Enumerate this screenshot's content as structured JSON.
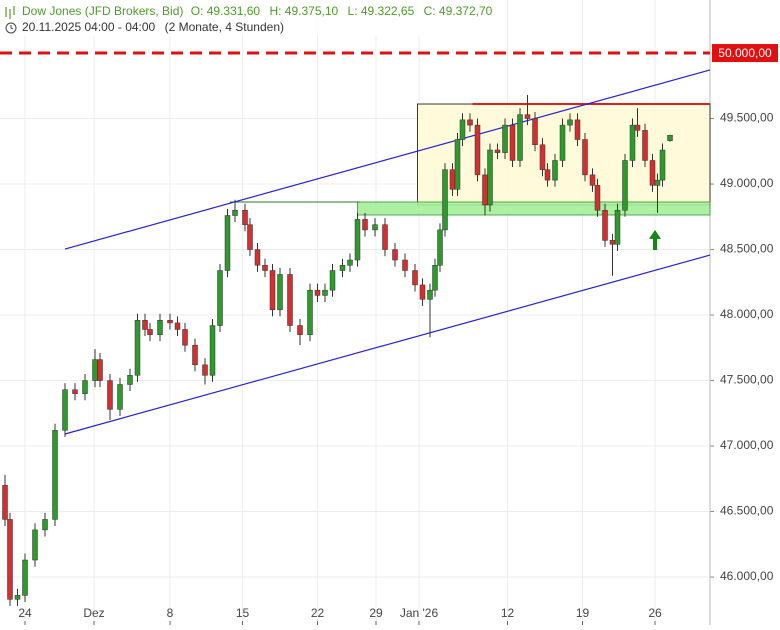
{
  "chart_data": {
    "type": "candlestick",
    "header": {
      "instrument": "Dow Jones (JFD Brokers, Bid)",
      "ohlc": [
        "O: 49.331,60",
        "H: 49.375,10",
        "L: 49.322,65",
        "C: 49.372,70"
      ],
      "period": "20.11.2025 04:00 - 04:00",
      "range": "(2 Monate, 4 Stunden)"
    },
    "x": [
      0,
      2,
      5,
      8,
      12,
      16,
      20,
      24,
      28,
      32,
      36,
      38,
      42,
      46,
      50,
      53,
      56,
      58,
      62,
      66,
      69,
      72,
      76,
      80,
      83,
      86,
      89,
      92,
      96,
      98,
      101,
      104,
      107,
      110,
      114,
      118,
      122,
      125,
      128,
      131,
      135,
      138,
      141,
      144,
      148,
      152,
      156,
      160,
      164,
      167,
      170,
      172,
      174,
      176,
      179,
      181,
      183,
      186,
      189,
      192,
      194,
      197,
      200,
      203,
      206,
      209,
      212,
      215,
      217,
      220,
      223,
      226,
      229,
      232,
      235,
      237,
      240,
      243,
      245,
      248,
      251,
      253,
      256,
      259,
      261,
      263,
      266
    ],
    "open": [
      46700,
      46440,
      45830,
      45860,
      46130,
      46360,
      46440,
      47120,
      47430,
      47400,
      47500,
      47660,
      47500,
      47280,
      47470,
      47540,
      47960,
      47890,
      47850,
      47960,
      47940,
      47890,
      47770,
      47620,
      47540,
      47920,
      48340,
      48760,
      48800,
      48690,
      48500,
      48380,
      48340,
      48040,
      48310,
      47920,
      47850,
      48190,
      48150,
      48190,
      48340,
      48380,
      48420,
      48730,
      48650,
      48690,
      48500,
      48420,
      48340,
      48230,
      48120,
      48190,
      48380,
      48650,
      49110,
      48960,
      49340,
      49490,
      49450,
      49070,
      48840,
      49260,
      49240,
      49450,
      49180,
      49530,
      49500,
      49300,
      49110,
      49030,
      49180,
      49450,
      49490,
      49340,
      49070,
      48990,
      48800,
      48570,
      48540,
      48800,
      49180,
      49450,
      49410,
      49180,
      48990,
      49030,
      49331.6
    ],
    "high": [
      46780,
      46490,
      45910,
      46180,
      46410,
      46490,
      47170,
      47480,
      47480,
      47550,
      47740,
      47710,
      47550,
      47520,
      47590,
      48010,
      48010,
      47940,
      48010,
      48010,
      47990,
      47940,
      47820,
      47670,
      47970,
      48390,
      48810,
      48880,
      48850,
      48740,
      48550,
      48430,
      48390,
      48360,
      48360,
      47970,
      48240,
      48240,
      48240,
      48390,
      48430,
      48470,
      48780,
      48780,
      48740,
      48740,
      48550,
      48470,
      48390,
      48280,
      48240,
      48430,
      48700,
      49160,
      49160,
      49390,
      49540,
      49540,
      49500,
      49120,
      49310,
      49310,
      49500,
      49500,
      49580,
      49680,
      49550,
      49350,
      49160,
      49230,
      49500,
      49540,
      49540,
      49390,
      49120,
      49040,
      48850,
      48620,
      48850,
      49230,
      49500,
      49580,
      49460,
      49230,
      49080,
      49310,
      49375.1
    ],
    "low": [
      46390,
      45780,
      45780,
      45810,
      46080,
      46310,
      46390,
      47070,
      47350,
      47350,
      47450,
      47450,
      47200,
      47230,
      47420,
      47490,
      47840,
      47800,
      47800,
      47890,
      47840,
      47720,
      47570,
      47470,
      47490,
      47870,
      48290,
      48710,
      48640,
      48450,
      48330,
      48290,
      47990,
      47990,
      47870,
      47770,
      47800,
      48100,
      48100,
      48140,
      48290,
      48330,
      48370,
      48600,
      48600,
      48450,
      48370,
      48290,
      48180,
      48070,
      47830,
      48140,
      48330,
      48600,
      48910,
      48910,
      49290,
      49400,
      49020,
      48760,
      48790,
      49190,
      49190,
      49130,
      49130,
      49450,
      49250,
      49060,
      48980,
      48980,
      49130,
      49400,
      49290,
      49020,
      48940,
      48750,
      48520,
      48300,
      48490,
      48750,
      49130,
      49360,
      49130,
      48940,
      48780,
      48980,
      49322.65
    ],
    "close": [
      46440,
      45830,
      45860,
      46130,
      46360,
      46440,
      47120,
      47430,
      47400,
      47500,
      47660,
      47500,
      47280,
      47470,
      47540,
      47960,
      47890,
      47850,
      47960,
      47940,
      47890,
      47770,
      47620,
      47540,
      47920,
      48340,
      48760,
      48800,
      48690,
      48500,
      48380,
      48340,
      48040,
      48310,
      47920,
      47850,
      48190,
      48150,
      48190,
      48340,
      48380,
      48420,
      48730,
      48650,
      48690,
      48500,
      48420,
      48340,
      48230,
      48120,
      48190,
      48380,
      48650,
      49110,
      48960,
      49340,
      49490,
      49450,
      49070,
      48840,
      49260,
      49240,
      49450,
      49180,
      49530,
      49500,
      49300,
      49110,
      49030,
      49180,
      49450,
      49490,
      49340,
      49070,
      48990,
      48800,
      48570,
      48540,
      48800,
      49180,
      49450,
      49410,
      49180,
      48990,
      49030,
      49260,
      49372.7
    ],
    "up_color": "#2e9a2e",
    "down_color": "#d23030",
    "xlim": [
      -2,
      282
    ],
    "xticks": [
      {
        "value": 8,
        "label": "24"
      },
      {
        "value": 35.6,
        "label": "Dez"
      },
      {
        "value": 66,
        "label": "8"
      },
      {
        "value": 95,
        "label": "15"
      },
      {
        "value": 125,
        "label": "22"
      },
      {
        "value": 148.4,
        "label": "29"
      },
      {
        "value": 165.6,
        "label": "Jan '26"
      },
      {
        "value": 201,
        "label": "12"
      },
      {
        "value": 231,
        "label": "19"
      },
      {
        "value": 260,
        "label": "26"
      }
    ],
    "ylim": [
      45634,
      50405
    ],
    "yticks": [
      {
        "value": 46000,
        "label": "46.000,00"
      },
      {
        "value": 46500,
        "label": "46.500,00"
      },
      {
        "value": 47000,
        "label": "47.000,00"
      },
      {
        "value": 47500,
        "label": "47.500,00"
      },
      {
        "value": 48000,
        "label": "48.000,00"
      },
      {
        "value": 48500,
        "label": "48.500,00"
      },
      {
        "value": 49000,
        "label": "49.000,00"
      },
      {
        "value": 49500,
        "label": "49.500,00"
      }
    ],
    "grid": true,
    "level": {
      "value": 50000,
      "label": "50.000,00",
      "color": "#e01010"
    },
    "zones": [
      {
        "x": [
          165,
          282
        ],
        "values": [
          48840,
          49611
        ],
        "color": "#fffbd6",
        "stroke": "#222222"
      },
      {
        "x": [
          141,
          282
        ],
        "values": [
          48764,
          48863
        ],
        "color": "#a6ef9a",
        "stroke": "#3aa03a"
      }
    ],
    "trend_lines": [
      {
        "x": [
          24,
          282
        ],
        "values": [
          48504,
          49871
        ],
        "color": "#2222d8"
      },
      {
        "x": [
          24,
          282
        ],
        "values": [
          47092,
          48458
        ],
        "color": "#2222d8"
      }
    ],
    "hlines": [
      {
        "x": [
          187,
          282
        ],
        "value": 49611,
        "color": "#e02020"
      },
      {
        "x": [
          90,
          142
        ],
        "value": 48863,
        "color": "#2a7a2a"
      }
    ],
    "arrow": {
      "x": 260,
      "values": [
        48497,
        48650
      ],
      "color": "#108a10"
    }
  }
}
